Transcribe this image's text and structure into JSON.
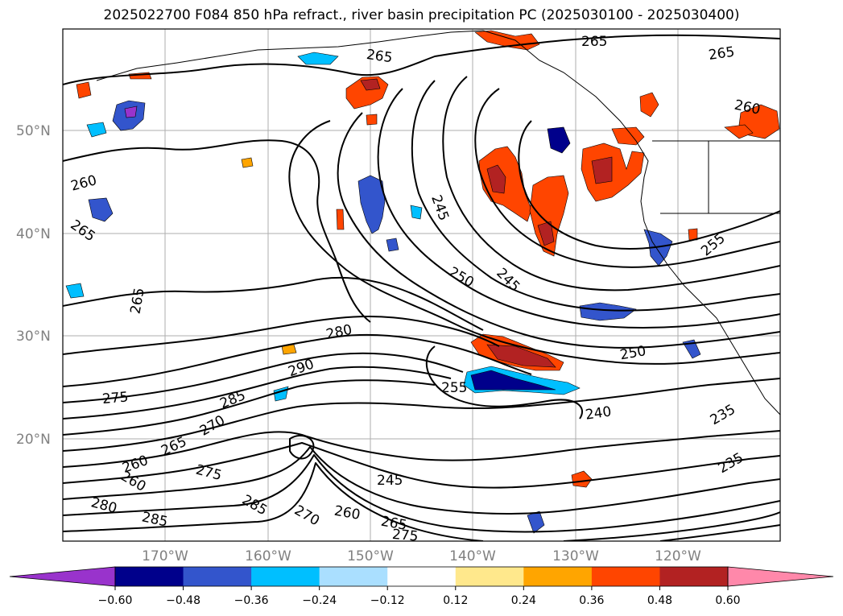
{
  "title": "2025022700 F084 850 hPa refract., river basin precipitation PC (2025030100 - 2025030400)",
  "latitude_ticks": [
    "50°N",
    "40°N",
    "30°N",
    "20°N"
  ],
  "longitude_ticks": [
    "170°W",
    "160°W",
    "150°W",
    "140°W",
    "130°W",
    "120°W"
  ],
  "colorbar": {
    "ticks": [
      "−0.60",
      "−0.48",
      "−0.36",
      "−0.24",
      "−0.12",
      "0.12",
      "0.24",
      "0.36",
      "0.48",
      "0.60"
    ],
    "colors": [
      "#9933cc",
      "#00008b",
      "#3355cc",
      "#00bfff",
      "#aadfff",
      "#ffffff",
      "#ffe88c",
      "#ffa500",
      "#ff4500",
      "#b22222",
      "#ff88aa"
    ]
  },
  "contour_labels": [
    "265",
    "265",
    "265",
    "260",
    "260",
    "265",
    "245",
    "250",
    "245",
    "255",
    "280",
    "290",
    "285",
    "275",
    "270",
    "265",
    "260",
    "275",
    "280",
    "285",
    "285",
    "270",
    "260",
    "265",
    "275",
    "245",
    "250",
    "255",
    "240",
    "235",
    "235",
    "265",
    "260"
  ]
}
